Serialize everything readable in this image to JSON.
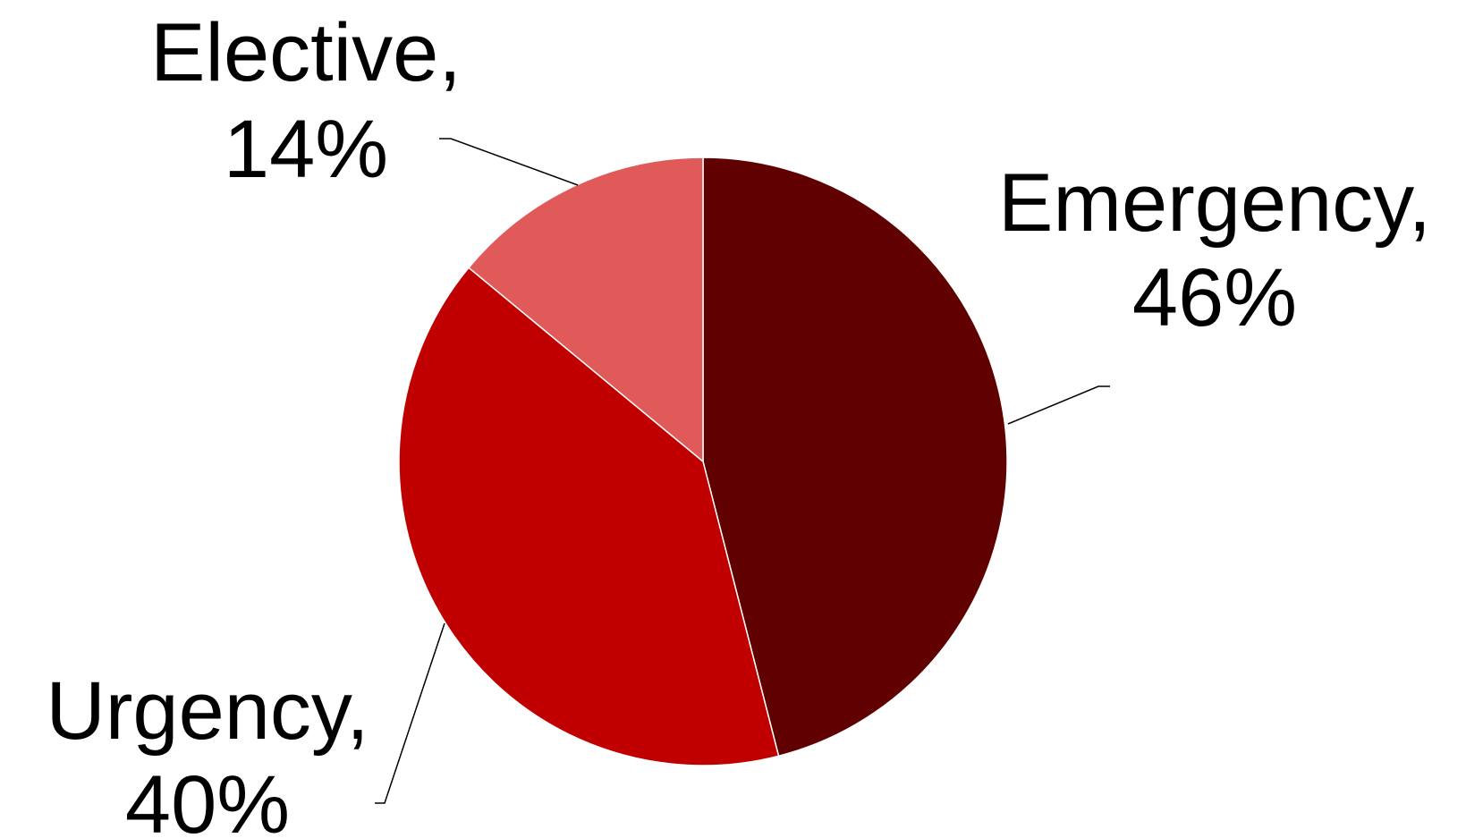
{
  "chart_data": {
    "type": "pie",
    "slices": [
      {
        "label": "Emergency",
        "value": 46,
        "display_value": "46%",
        "color": "#600000"
      },
      {
        "label": "Urgency",
        "value": 40,
        "display_value": "40%",
        "color": "#c00000"
      },
      {
        "label": "Elective",
        "value": 14,
        "display_value": "14%",
        "color": "#e05a5a"
      }
    ],
    "start_angle": "12 o'clock",
    "direction": "clockwise",
    "slice_border_color": "#ffffff",
    "legend": "none",
    "data_labels": "outside with leader lines"
  }
}
